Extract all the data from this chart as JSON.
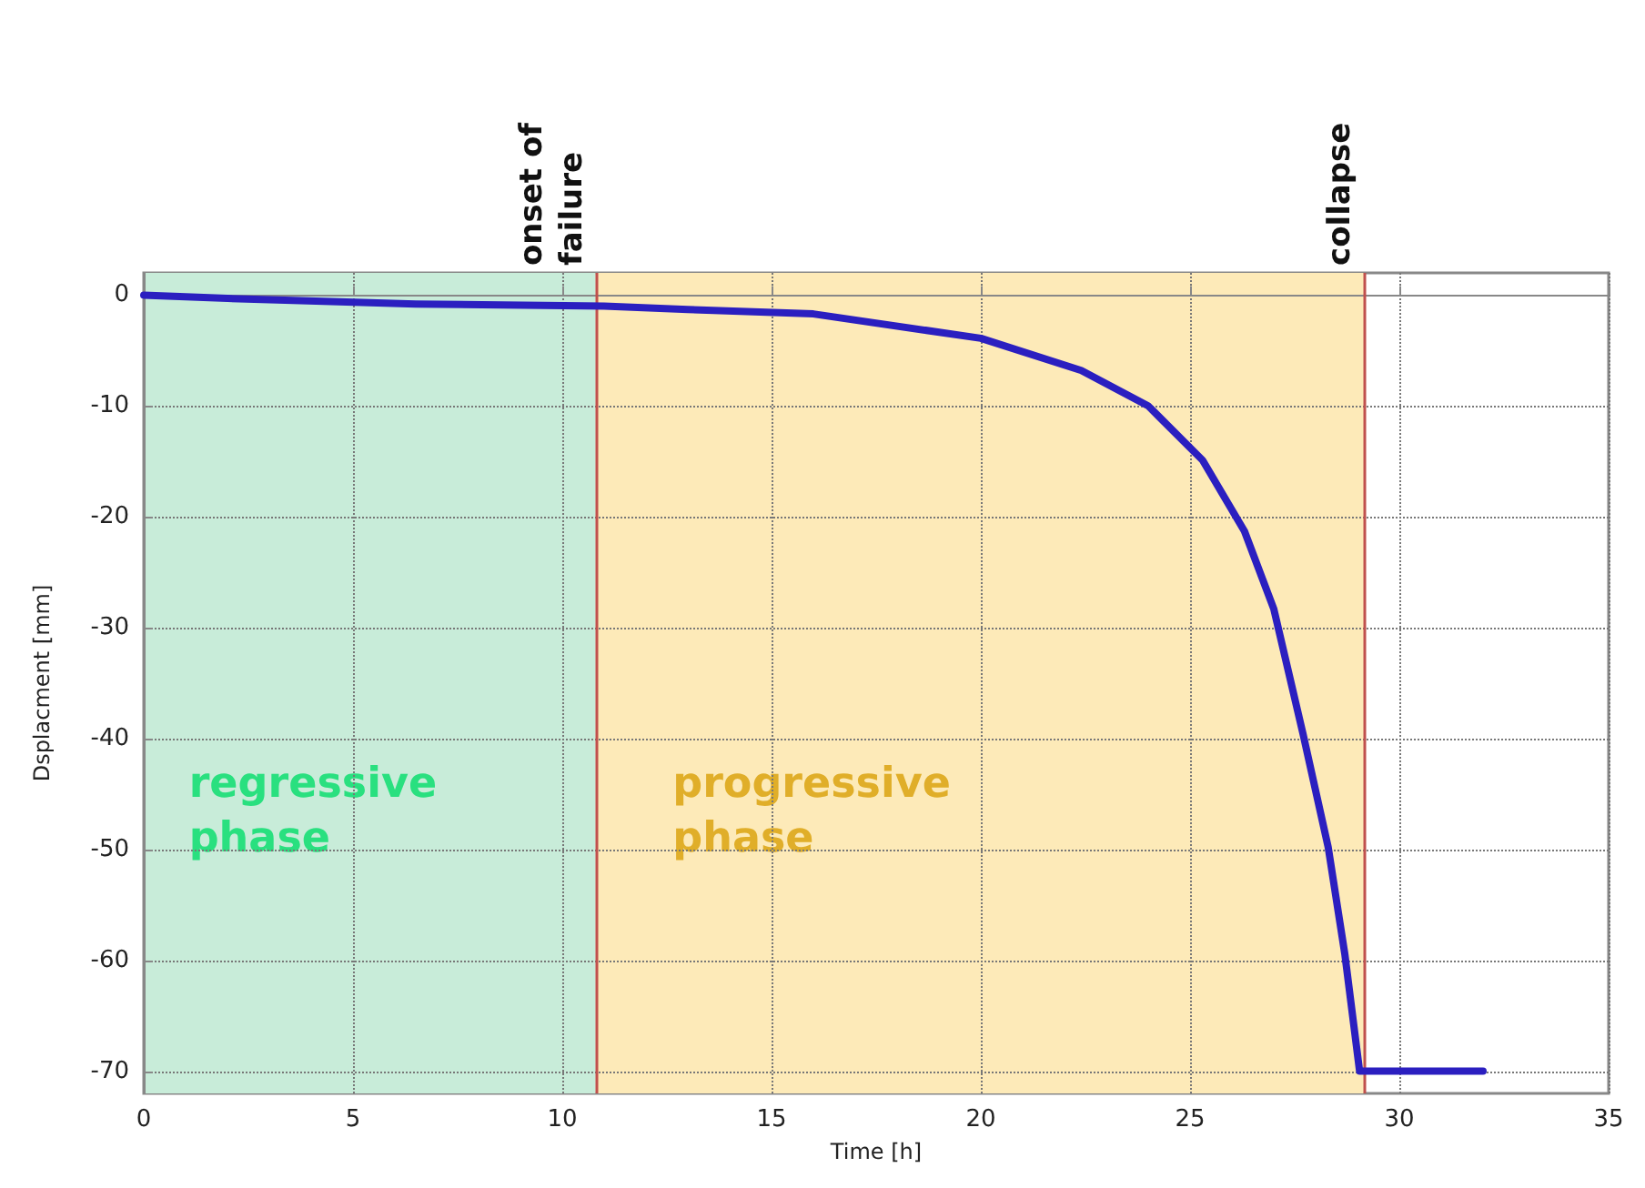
{
  "chart_data": {
    "type": "line",
    "xlabel": "Time [h]",
    "ylabel": "Dsplacment [mm]",
    "series": [
      {
        "color": "#2b1fc0",
        "x": [
          0,
          2,
          6.5,
          11,
          13,
          16,
          20,
          22.4,
          24,
          25.3,
          26.3,
          27,
          27.7,
          28.3,
          28.7,
          29.05,
          32
        ],
        "values": [
          0,
          -0.3,
          -0.8,
          -1,
          -1.3,
          -1.7,
          -3.9,
          -6.8,
          -10,
          -14.9,
          -21.3,
          -28.3,
          -39.6,
          -49.8,
          -59.5,
          -70,
          -70
        ]
      }
    ],
    "xlim": [
      0,
      35
    ],
    "xticks": [
      0,
      5,
      10,
      15,
      20,
      25,
      30,
      35
    ],
    "ylim": [
      -72,
      2
    ],
    "yticks": [
      -70,
      -60,
      -50,
      -40,
      -30,
      -20,
      -10,
      0
    ],
    "grid": true,
    "marker": "none",
    "line_style": "solid",
    "ref_lines": [
      {
        "axis": "x",
        "value": 10.8,
        "label": "onset of\nfailure",
        "color": "#c0504d"
      },
      {
        "axis": "x",
        "value": 29.15,
        "label": "collapse",
        "color": "#c0504d"
      }
    ],
    "bands": [
      {
        "axis": "x",
        "from": 0,
        "to": 10.8,
        "label": "regressive\nphase",
        "color": "#c8ecd9"
      },
      {
        "axis": "x",
        "from": 10.8,
        "to": 29.15,
        "label": "progressive\nphase",
        "color": "#fdeab8"
      }
    ]
  }
}
